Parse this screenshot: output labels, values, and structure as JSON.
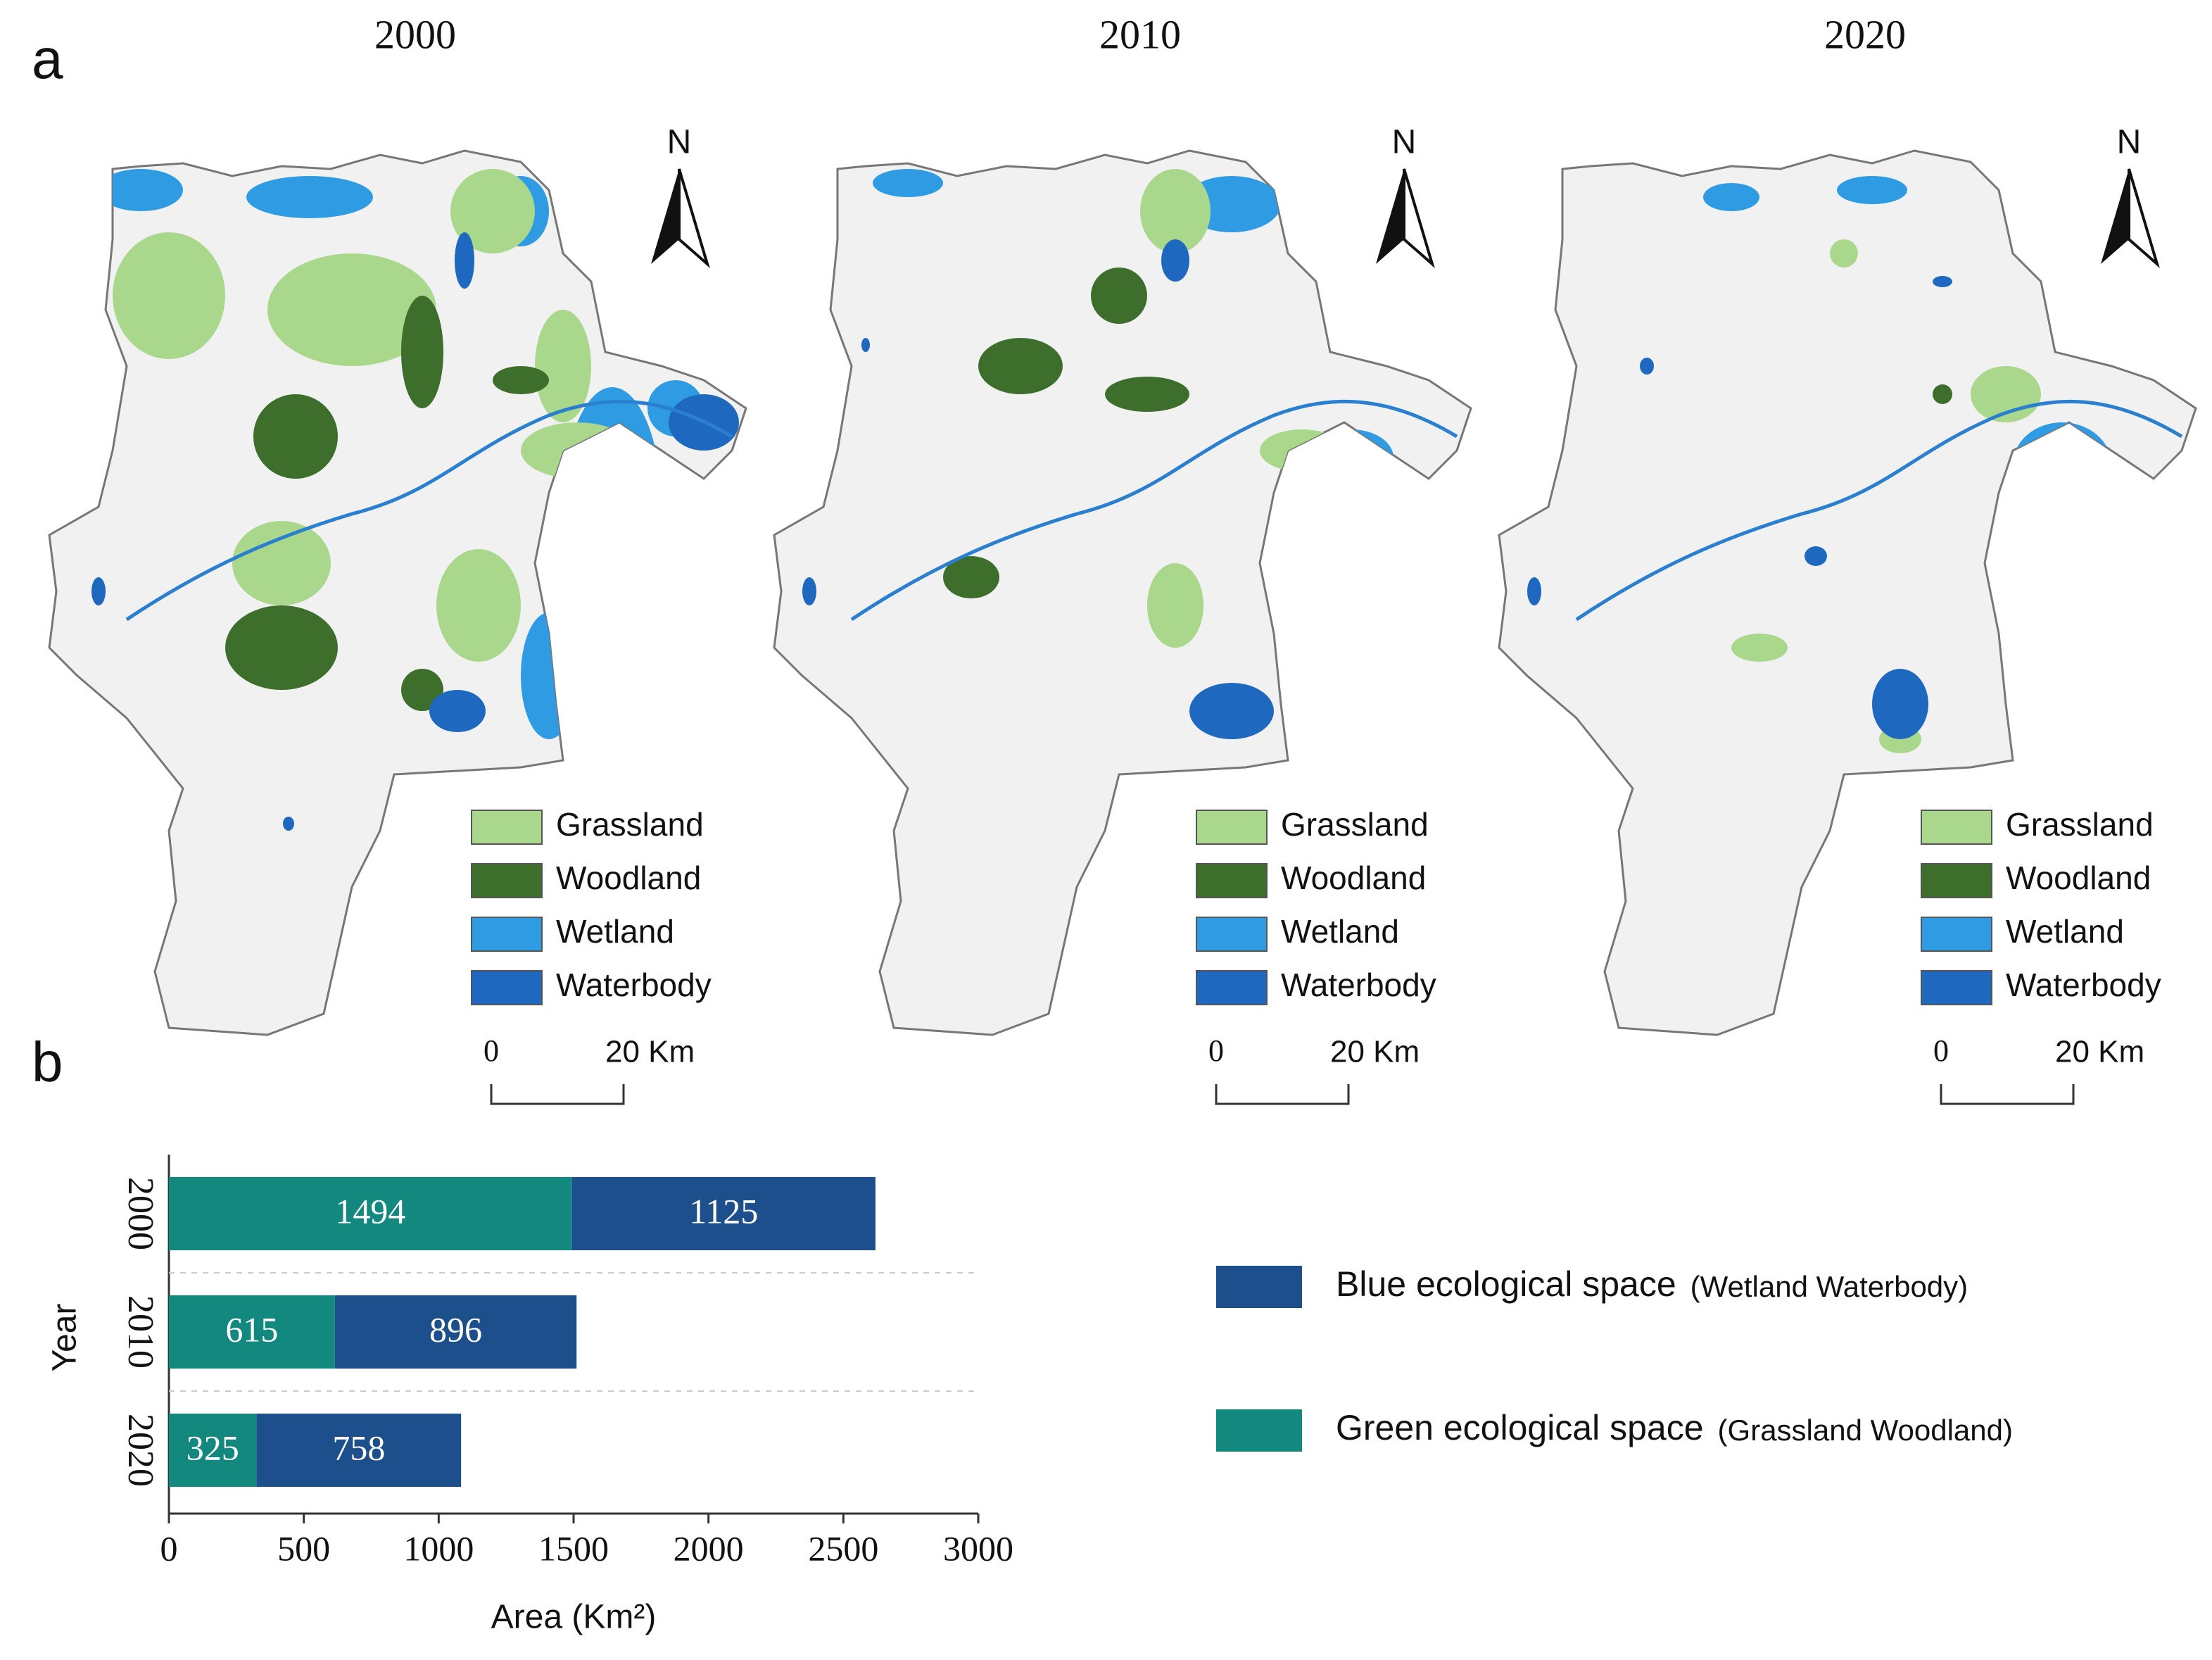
{
  "panel_labels": [
    "a",
    "b"
  ],
  "maps": [
    {
      "year": "2000",
      "north": "N",
      "scale": [
        "0",
        "20 Km"
      ],
      "legend": [
        {
          "label": "Grassland",
          "color": "#a9d78b"
        },
        {
          "label": "Woodland",
          "color": "#3d6e2c"
        },
        {
          "label": "Wetland",
          "color": "#2f9be3"
        },
        {
          "label": "Waterbody",
          "color": "#1f68bf"
        }
      ]
    },
    {
      "year": "2010",
      "north": "N",
      "scale": [
        "0",
        "20 Km"
      ],
      "legend": [
        {
          "label": "Grassland",
          "color": "#a9d78b"
        },
        {
          "label": "Woodland",
          "color": "#3d6e2c"
        },
        {
          "label": "Wetland",
          "color": "#2f9be3"
        },
        {
          "label": "Waterbody",
          "color": "#1f68bf"
        }
      ]
    },
    {
      "year": "2020",
      "north": "N",
      "scale": [
        "0",
        "20 Km"
      ],
      "legend": [
        {
          "label": "Grassland",
          "color": "#a9d78b"
        },
        {
          "label": "Woodland",
          "color": "#3d6e2c"
        },
        {
          "label": "Wetland",
          "color": "#2f9be3"
        },
        {
          "label": "Waterbody",
          "color": "#1f68bf"
        }
      ]
    }
  ],
  "chart_data": {
    "type": "bar",
    "orientation": "horizontal",
    "stacked": true,
    "categories": [
      "2000",
      "2010",
      "2020"
    ],
    "series": [
      {
        "name": "Green ecological space",
        "detail": "(Grassland Woodland)",
        "color": "#13887e",
        "values": [
          1494,
          615,
          325
        ]
      },
      {
        "name": "Blue ecological space",
        "detail": "(Wetland Waterbody)",
        "color": "#1c4f8b",
        "values": [
          1125,
          896,
          758
        ]
      }
    ],
    "xlim": [
      0,
      3000
    ],
    "xticks": [
      0,
      500,
      1000,
      1500,
      2000,
      2500,
      3000
    ],
    "xlabel": "Area (Km²)",
    "ylabel": "Year"
  }
}
